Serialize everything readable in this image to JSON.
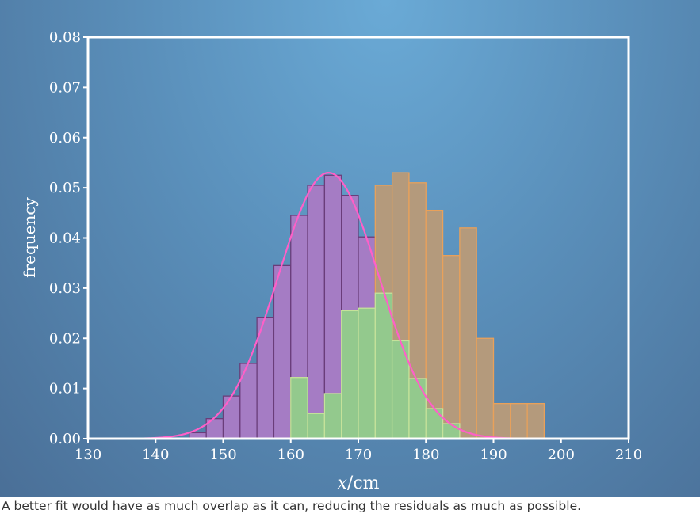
{
  "caption": "A better fit would have as much overlap as it can, reducing the residuals as much as possible.",
  "chart_data": {
    "type": "bar",
    "title": "",
    "xlabel": "x/cm",
    "ylabel": "frequency",
    "xlim": [
      130,
      210
    ],
    "ylim": [
      0,
      0.08
    ],
    "xticks": [
      130,
      140,
      150,
      160,
      170,
      180,
      190,
      200,
      210
    ],
    "yticks": [
      0.0,
      0.01,
      0.02,
      0.03,
      0.04,
      0.05,
      0.06,
      0.07,
      0.08
    ],
    "ytick_labels": [
      "0.00",
      "0.01",
      "0.02",
      "0.03",
      "0.04",
      "0.05",
      "0.06",
      "0.07",
      "0.08"
    ],
    "grid": false,
    "colors": {
      "purple": "#a57cc4",
      "purple_edge": "#6a3d7a",
      "green": "#93c98d",
      "green_edge": "#c5e29a",
      "orange": "#b49a7c",
      "orange_edge": "#e9a15a",
      "curve": "#ff5fc8",
      "frame": "#ffffff"
    },
    "series": [
      {
        "bin_width": 2.5,
        "bins": [
          [
            145,
            0.0012
          ],
          [
            147.5,
            0.004
          ],
          [
            150,
            0.0085
          ],
          [
            152.5,
            0.015
          ],
          [
            155,
            0.0242
          ],
          [
            157.5,
            0.0345
          ],
          [
            160,
            0.0445
          ],
          [
            162.5,
            0.0505
          ],
          [
            165,
            0.0525
          ],
          [
            167.5,
            0.0485
          ],
          [
            170,
            0.0402
          ],
          [
            172.5,
            0.029
          ]
        ]
      },
      {
        "bin_width": 2.5,
        "bins": [
          [
            160,
            0.0122
          ],
          [
            162.5,
            0.005
          ],
          [
            165,
            0.009
          ],
          [
            167.5,
            0.0255
          ],
          [
            170,
            0.026
          ],
          [
            172.5,
            0.029
          ],
          [
            175,
            0.0195
          ],
          [
            177.5,
            0.012
          ],
          [
            180,
            0.006
          ],
          [
            182.5,
            0.003
          ]
        ]
      },
      {
        "bin_width": 2.5,
        "bins": [
          [
            172.5,
            0.0505
          ],
          [
            175,
            0.053
          ],
          [
            177.5,
            0.051
          ],
          [
            180,
            0.0455
          ],
          [
            182.5,
            0.0365
          ],
          [
            185,
            0.042
          ],
          [
            187.5,
            0.02
          ],
          [
            190,
            0.007
          ],
          [
            192.5,
            0.007
          ],
          [
            195,
            0.007
          ]
        ]
      }
    ],
    "fit_curve": {
      "type": "gaussian",
      "mean": 165.6,
      "sd": 7.5,
      "peak": 0.053,
      "x_range": [
        135,
        200
      ]
    }
  }
}
